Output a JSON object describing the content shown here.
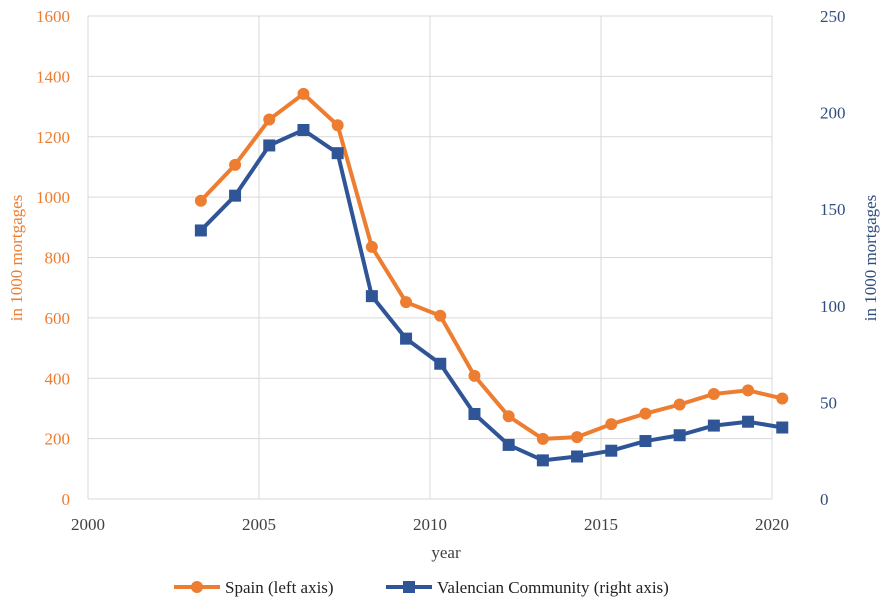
{
  "chart_data": {
    "type": "line",
    "xlabel": "year",
    "ylabel_left": "in 1000 mortgages",
    "ylabel_right": "in 1000 mortgages",
    "xlim": [
      2000,
      2020
    ],
    "xticks": [
      "2000",
      "2005",
      "2010",
      "2015",
      "2020"
    ],
    "ylim_left": [
      0,
      1600
    ],
    "yticks_left": [
      "0",
      "200",
      "400",
      "600",
      "800",
      "1000",
      "1200",
      "1400",
      "1600"
    ],
    "ylim_right": [
      0,
      250
    ],
    "yticks_right": [
      "0",
      "50",
      "100",
      "150",
      "200",
      "250"
    ],
    "grid": true,
    "legend_position": "bottom",
    "x": [
      2003.3,
      2004.3,
      2005.3,
      2006.3,
      2007.3,
      2008.3,
      2009.3,
      2010.3,
      2011.3,
      2012.3,
      2013.3,
      2014.3,
      2015.3,
      2016.3,
      2017.3,
      2018.3,
      2019.3,
      2020.3
    ],
    "series": [
      {
        "name": "Spain (left axis)",
        "axis": "left",
        "color": "#ED7D31",
        "marker": "circle",
        "values": [
          988,
          1107,
          1257,
          1342,
          1238,
          835,
          652,
          607,
          408,
          274,
          199,
          205,
          248,
          283,
          313,
          348,
          360,
          333
        ]
      },
      {
        "name": "Valencian Community (right axis)",
        "axis": "right",
        "color": "#2F5597",
        "marker": "square",
        "values": [
          139,
          157,
          183,
          191,
          179,
          105,
          83,
          70,
          44,
          28,
          20,
          22,
          25,
          30,
          33,
          38,
          40,
          37
        ]
      }
    ]
  }
}
